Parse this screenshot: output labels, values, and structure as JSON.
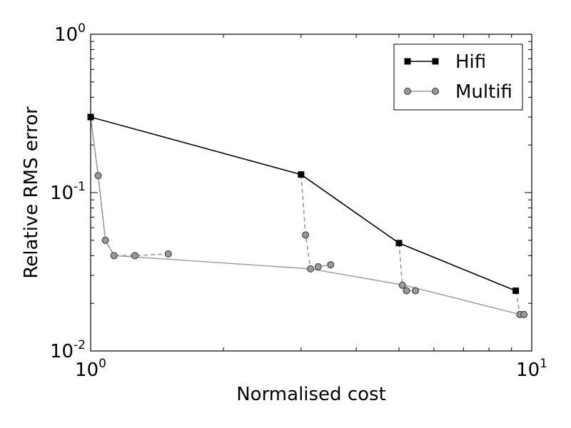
{
  "chart_data": {
    "type": "line",
    "xlabel": "Normalised cost",
    "ylabel": "Relative RMS error",
    "xscale": "log",
    "yscale": "log",
    "xlim": [
      1,
      10
    ],
    "ylim": [
      0.01,
      1
    ],
    "xticks": [
      {
        "base": "10",
        "exp": "0"
      },
      {
        "base": "10",
        "exp": "1"
      }
    ],
    "yticks": [
      {
        "base": "10",
        "exp": "0"
      },
      {
        "base": "10",
        "exp": "-1"
      },
      {
        "base": "10",
        "exp": "-2"
      }
    ],
    "legend_position": "top-right",
    "series": [
      {
        "name": "Hifi",
        "color": "#000000",
        "marker": "square",
        "line": "solid",
        "points": [
          [
            1.0,
            0.3
          ],
          [
            3.0,
            0.13
          ],
          [
            5.0,
            0.048
          ],
          [
            9.2,
            0.024
          ]
        ]
      },
      {
        "name": "Multifi",
        "color": "#999999",
        "marker": "circle",
        "line": "solid",
        "points": [
          [
            1.0,
            0.3
          ],
          [
            1.04,
            0.128
          ],
          [
            1.08,
            0.05
          ],
          [
            1.13,
            0.04
          ],
          [
            3.15,
            0.033
          ],
          [
            5.15,
            0.026
          ],
          [
            9.4,
            0.017
          ]
        ]
      }
    ],
    "branches": [
      {
        "line": "dashed",
        "points": [
          [
            1.0,
            0.3
          ],
          [
            1.04,
            0.128
          ],
          [
            1.08,
            0.05
          ],
          [
            1.13,
            0.04
          ],
          [
            1.26,
            0.04
          ],
          [
            1.5,
            0.041
          ]
        ]
      },
      {
        "line": "dashed",
        "points": [
          [
            3.0,
            0.13
          ],
          [
            3.07,
            0.054
          ],
          [
            3.15,
            0.033
          ],
          [
            3.28,
            0.034
          ],
          [
            3.5,
            0.035
          ]
        ]
      },
      {
        "line": "dashed",
        "points": [
          [
            5.0,
            0.048
          ],
          [
            5.09,
            0.026
          ],
          [
            5.2,
            0.024
          ],
          [
            5.45,
            0.024
          ]
        ]
      },
      {
        "line": "dashed",
        "points": [
          [
            9.2,
            0.024
          ],
          [
            9.4,
            0.017
          ],
          [
            9.6,
            0.017
          ]
        ]
      }
    ]
  }
}
